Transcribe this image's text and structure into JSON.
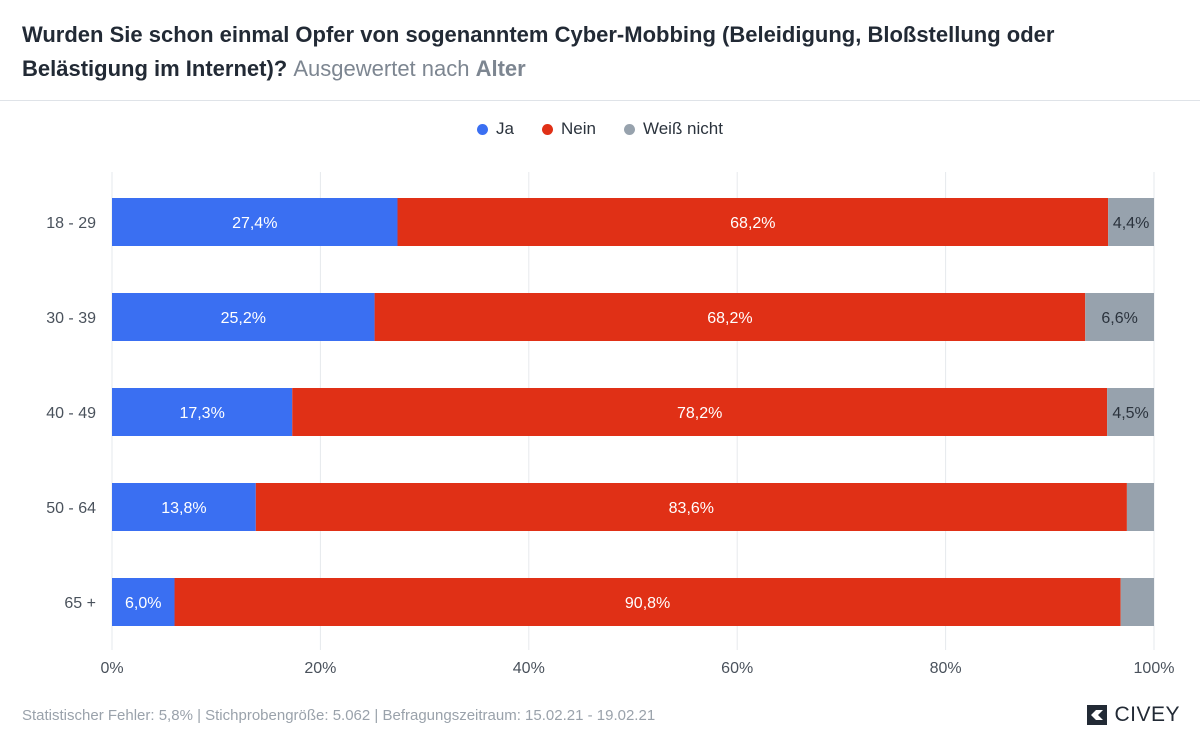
{
  "header": {
    "title_main": "Wurden Sie schon einmal Opfer von sogenanntem Cyber-Mobbing (Beleidigung, Bloßstellung oder Belästigung im Internet)?",
    "title_sub_prefix": "Ausgewertet nach",
    "title_sub_key": "Alter"
  },
  "footer": {
    "text": "Statistischer Fehler: 5,8% | Stichprobengröße: 5.062 | Befragungszeitraum: 15.02.21 - 19.02.21",
    "brand": "CIVEY"
  },
  "chart_data": {
    "type": "bar",
    "orientation": "horizontal",
    "stacked": true,
    "categories": [
      "18 - 29",
      "30 - 39",
      "40 - 49",
      "50 - 64",
      "65 +"
    ],
    "series": [
      {
        "name": "Ja",
        "color": "#3a6ff2",
        "values": [
          27.4,
          25.2,
          17.3,
          13.8,
          6.0
        ],
        "labels": [
          "27,4%",
          "25,2%",
          "17,3%",
          "13,8%",
          "6,0%"
        ]
      },
      {
        "name": "Nein",
        "color": "#e03016",
        "values": [
          68.2,
          68.2,
          78.2,
          83.6,
          90.8
        ],
        "labels": [
          "68,2%",
          "68,2%",
          "78,2%",
          "83,6%",
          "90,8%"
        ]
      },
      {
        "name": "Weiß nicht",
        "color": "#97a2ad",
        "values": [
          4.4,
          6.6,
          4.5,
          2.6,
          3.2
        ],
        "labels": [
          "4,4%",
          "6,6%",
          "4,5%",
          "",
          ""
        ]
      }
    ],
    "xlim": [
      0,
      100
    ],
    "xticks": [
      0,
      20,
      40,
      60,
      80,
      100
    ],
    "xtick_labels": [
      "0%",
      "20%",
      "40%",
      "60%",
      "80%",
      "100%"
    ],
    "grid": true,
    "legend_position": "top-center"
  }
}
